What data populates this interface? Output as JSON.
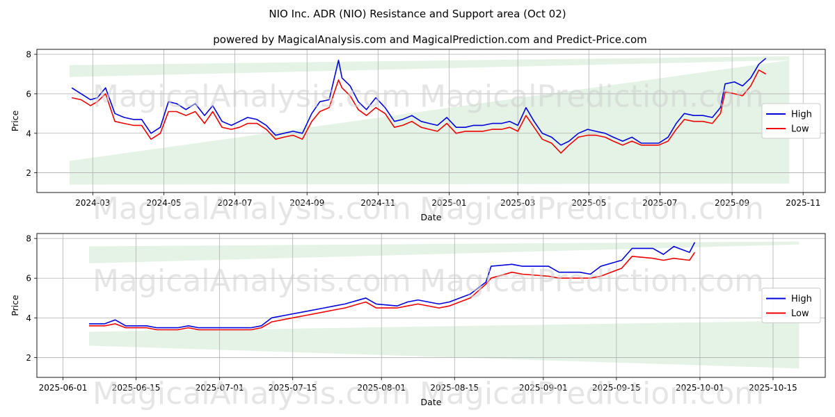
{
  "title": "NIO Inc. ADR (NIO) Resistance and Support area (Oct 02)",
  "subtitle": "powered by MagicalAnalysis.com and MagicalPrediction.com and Predict-Price.com",
  "watermarks": [
    "MagicalAnalysis.com",
    "MagicalPrediction.com"
  ],
  "colors": {
    "high": "#0000dd",
    "low": "#ee0000",
    "band": "#4caf50"
  },
  "chart_data": [
    {
      "type": "line",
      "xlabel": "Date",
      "ylabel": "Price",
      "grid": true,
      "legend_position": "center-right",
      "x_ticks": [
        "2024-03",
        "2024-05",
        "2024-07",
        "2024-09",
        "2024-11",
        "2025-01",
        "2025-03",
        "2025-05",
        "2025-07",
        "2025-09",
        "2025-11"
      ],
      "y_ticks": [
        "2",
        "4",
        "6",
        "8"
      ],
      "xlim": [
        "2024-01-13",
        "2025-11-20"
      ],
      "ylim": [
        1.0,
        8.25
      ],
      "bands": [
        {
          "x": [
            "2024-02-10",
            "2025-10-20"
          ],
          "upper": [
            7.45,
            7.9
          ],
          "lower": [
            6.85,
            7.7
          ]
        },
        {
          "x": [
            "2024-02-10",
            "2025-10-20"
          ],
          "upper": [
            2.6,
            7.7
          ],
          "lower": [
            1.4,
            1.45
          ]
        }
      ],
      "series": [
        {
          "name": "High",
          "x": [
            "2024-02-12",
            "2024-02-20",
            "2024-02-28",
            "2024-03-05",
            "2024-03-12",
            "2024-03-20",
            "2024-03-28",
            "2024-04-05",
            "2024-04-12",
            "2024-04-20",
            "2024-04-28",
            "2024-05-05",
            "2024-05-12",
            "2024-05-20",
            "2024-05-28",
            "2024-06-05",
            "2024-06-12",
            "2024-06-20",
            "2024-06-28",
            "2024-07-05",
            "2024-07-12",
            "2024-07-20",
            "2024-07-28",
            "2024-08-05",
            "2024-08-12",
            "2024-08-20",
            "2024-08-28",
            "2024-09-05",
            "2024-09-12",
            "2024-09-20",
            "2024-09-28",
            "2024-10-01",
            "2024-10-08",
            "2024-10-15",
            "2024-10-22",
            "2024-10-30",
            "2024-11-07",
            "2024-11-15",
            "2024-11-22",
            "2024-11-30",
            "2024-12-08",
            "2024-12-15",
            "2024-12-22",
            "2024-12-30",
            "2025-01-07",
            "2025-01-15",
            "2025-01-22",
            "2025-01-30",
            "2025-02-07",
            "2025-02-15",
            "2025-02-22",
            "2025-03-01",
            "2025-03-08",
            "2025-03-15",
            "2025-03-22",
            "2025-03-30",
            "2025-04-07",
            "2025-04-14",
            "2025-04-22",
            "2025-04-30",
            "2025-05-07",
            "2025-05-15",
            "2025-05-22",
            "2025-05-30",
            "2025-06-07",
            "2025-06-15",
            "2025-06-22",
            "2025-06-30",
            "2025-07-08",
            "2025-07-15",
            "2025-07-22",
            "2025-07-30",
            "2025-08-07",
            "2025-08-15",
            "2025-08-22",
            "2025-08-26",
            "2025-09-03",
            "2025-09-10",
            "2025-09-17",
            "2025-09-24",
            "2025-09-30"
          ],
          "values": [
            6.3,
            6.0,
            5.7,
            5.8,
            6.3,
            5.0,
            4.8,
            4.7,
            4.7,
            4.0,
            4.3,
            5.6,
            5.5,
            5.2,
            5.5,
            4.9,
            5.4,
            4.6,
            4.4,
            4.6,
            4.8,
            4.7,
            4.4,
            3.9,
            4.0,
            4.1,
            4.0,
            5.0,
            5.6,
            5.7,
            7.7,
            6.8,
            6.4,
            5.6,
            5.2,
            5.8,
            5.3,
            4.6,
            4.7,
            4.9,
            4.6,
            4.5,
            4.4,
            4.8,
            4.3,
            4.3,
            4.4,
            4.4,
            4.5,
            4.5,
            4.6,
            4.4,
            5.3,
            4.6,
            4.0,
            3.8,
            3.4,
            3.6,
            4.0,
            4.2,
            4.1,
            4.0,
            3.8,
            3.6,
            3.8,
            3.5,
            3.5,
            3.5,
            3.8,
            4.5,
            5.0,
            4.9,
            4.9,
            4.8,
            5.3,
            6.5,
            6.6,
            6.4,
            6.8,
            7.5,
            7.8
          ]
        },
        {
          "name": "Low",
          "x": [
            "2024-02-12",
            "2024-02-20",
            "2024-02-28",
            "2024-03-05",
            "2024-03-12",
            "2024-03-20",
            "2024-03-28",
            "2024-04-05",
            "2024-04-12",
            "2024-04-20",
            "2024-04-28",
            "2024-05-05",
            "2024-05-12",
            "2024-05-20",
            "2024-05-28",
            "2024-06-05",
            "2024-06-12",
            "2024-06-20",
            "2024-06-28",
            "2024-07-05",
            "2024-07-12",
            "2024-07-20",
            "2024-07-28",
            "2024-08-05",
            "2024-08-12",
            "2024-08-20",
            "2024-08-28",
            "2024-09-05",
            "2024-09-12",
            "2024-09-20",
            "2024-09-28",
            "2024-10-01",
            "2024-10-08",
            "2024-10-15",
            "2024-10-22",
            "2024-10-30",
            "2024-11-07",
            "2024-11-15",
            "2024-11-22",
            "2024-11-30",
            "2024-12-08",
            "2024-12-15",
            "2024-12-22",
            "2024-12-30",
            "2025-01-07",
            "2025-01-15",
            "2025-01-22",
            "2025-01-30",
            "2025-02-07",
            "2025-02-15",
            "2025-02-22",
            "2025-03-01",
            "2025-03-08",
            "2025-03-15",
            "2025-03-22",
            "2025-03-30",
            "2025-04-07",
            "2025-04-14",
            "2025-04-22",
            "2025-04-30",
            "2025-05-07",
            "2025-05-15",
            "2025-05-22",
            "2025-05-30",
            "2025-06-07",
            "2025-06-15",
            "2025-06-22",
            "2025-06-30",
            "2025-07-08",
            "2025-07-15",
            "2025-07-22",
            "2025-07-30",
            "2025-08-07",
            "2025-08-15",
            "2025-08-22",
            "2025-08-26",
            "2025-09-03",
            "2025-09-10",
            "2025-09-17",
            "2025-09-24",
            "2025-09-30"
          ],
          "values": [
            5.8,
            5.7,
            5.4,
            5.6,
            6.0,
            4.6,
            4.5,
            4.4,
            4.4,
            3.7,
            4.0,
            5.1,
            5.1,
            4.9,
            5.1,
            4.5,
            5.1,
            4.3,
            4.2,
            4.3,
            4.5,
            4.5,
            4.2,
            3.7,
            3.8,
            3.9,
            3.7,
            4.6,
            5.1,
            5.3,
            6.7,
            6.3,
            5.9,
            5.2,
            4.9,
            5.3,
            5.0,
            4.3,
            4.4,
            4.6,
            4.3,
            4.2,
            4.1,
            4.5,
            4.0,
            4.1,
            4.1,
            4.1,
            4.2,
            4.2,
            4.3,
            4.1,
            4.9,
            4.3,
            3.7,
            3.5,
            3.0,
            3.4,
            3.8,
            3.9,
            3.9,
            3.8,
            3.6,
            3.4,
            3.6,
            3.4,
            3.4,
            3.4,
            3.6,
            4.2,
            4.7,
            4.6,
            4.6,
            4.5,
            5.0,
            6.1,
            6.0,
            5.9,
            6.4,
            7.2,
            7.0
          ]
        }
      ]
    },
    {
      "type": "line",
      "xlabel": "Date",
      "ylabel": "Price",
      "grid": true,
      "legend_position": "center-right",
      "x_ticks": [
        "2025-06-01",
        "2025-06-15",
        "2025-07-01",
        "2025-07-15",
        "2025-08-01",
        "2025-08-15",
        "2025-09-01",
        "2025-09-15",
        "2025-10-01",
        "2025-10-15"
      ],
      "y_ticks": [
        "2",
        "4",
        "6",
        "8"
      ],
      "xlim": [
        "2025-05-27",
        "2025-10-25"
      ],
      "ylim": [
        1.0,
        8.25
      ],
      "bands": [
        {
          "x": [
            "2025-06-06",
            "2025-10-20"
          ],
          "upper": [
            7.6,
            7.85
          ],
          "lower": [
            6.75,
            7.7
          ]
        },
        {
          "x": [
            "2025-06-06",
            "2025-10-20"
          ],
          "upper": [
            3.3,
            3.85
          ],
          "lower": [
            2.6,
            1.45
          ]
        }
      ],
      "series": [
        {
          "name": "High",
          "x": [
            "2025-06-06",
            "2025-06-09",
            "2025-06-11",
            "2025-06-13",
            "2025-06-17",
            "2025-06-19",
            "2025-06-23",
            "2025-06-25",
            "2025-06-27",
            "2025-06-30",
            "2025-07-03",
            "2025-07-07",
            "2025-07-09",
            "2025-07-11",
            "2025-07-15",
            "2025-07-17",
            "2025-07-21",
            "2025-07-23",
            "2025-07-25",
            "2025-07-29",
            "2025-07-31",
            "2025-08-04",
            "2025-08-06",
            "2025-08-08",
            "2025-08-12",
            "2025-08-14",
            "2025-08-18",
            "2025-08-21",
            "2025-08-22",
            "2025-08-26",
            "2025-08-28",
            "2025-09-02",
            "2025-09-04",
            "2025-09-08",
            "2025-09-10",
            "2025-09-12",
            "2025-09-16",
            "2025-09-18",
            "2025-09-22",
            "2025-09-24",
            "2025-09-26",
            "2025-09-29",
            "2025-09-30"
          ],
          "values": [
            3.7,
            3.7,
            3.9,
            3.6,
            3.6,
            3.5,
            3.5,
            3.6,
            3.5,
            3.5,
            3.5,
            3.5,
            3.6,
            4.0,
            4.2,
            4.3,
            4.5,
            4.6,
            4.7,
            5.0,
            4.7,
            4.6,
            4.8,
            4.9,
            4.7,
            4.8,
            5.2,
            5.8,
            6.6,
            6.7,
            6.6,
            6.6,
            6.3,
            6.3,
            6.2,
            6.6,
            6.9,
            7.5,
            7.5,
            7.2,
            7.6,
            7.3,
            7.8
          ]
        },
        {
          "name": "Low",
          "x": [
            "2025-06-06",
            "2025-06-09",
            "2025-06-11",
            "2025-06-13",
            "2025-06-17",
            "2025-06-19",
            "2025-06-23",
            "2025-06-25",
            "2025-06-27",
            "2025-06-30",
            "2025-07-03",
            "2025-07-07",
            "2025-07-09",
            "2025-07-11",
            "2025-07-15",
            "2025-07-17",
            "2025-07-21",
            "2025-07-23",
            "2025-07-25",
            "2025-07-29",
            "2025-07-31",
            "2025-08-04",
            "2025-08-06",
            "2025-08-08",
            "2025-08-12",
            "2025-08-14",
            "2025-08-18",
            "2025-08-21",
            "2025-08-22",
            "2025-08-26",
            "2025-08-28",
            "2025-09-02",
            "2025-09-04",
            "2025-09-08",
            "2025-09-10",
            "2025-09-12",
            "2025-09-16",
            "2025-09-18",
            "2025-09-22",
            "2025-09-24",
            "2025-09-26",
            "2025-09-29",
            "2025-09-30"
          ],
          "values": [
            3.6,
            3.6,
            3.7,
            3.5,
            3.5,
            3.4,
            3.4,
            3.5,
            3.4,
            3.4,
            3.4,
            3.4,
            3.5,
            3.8,
            4.0,
            4.1,
            4.3,
            4.4,
            4.5,
            4.8,
            4.5,
            4.5,
            4.6,
            4.7,
            4.5,
            4.6,
            5.0,
            5.7,
            6.0,
            6.3,
            6.2,
            6.1,
            6.0,
            6.0,
            6.0,
            6.1,
            6.5,
            7.1,
            7.0,
            6.9,
            7.0,
            6.9,
            7.3
          ]
        }
      ]
    }
  ]
}
